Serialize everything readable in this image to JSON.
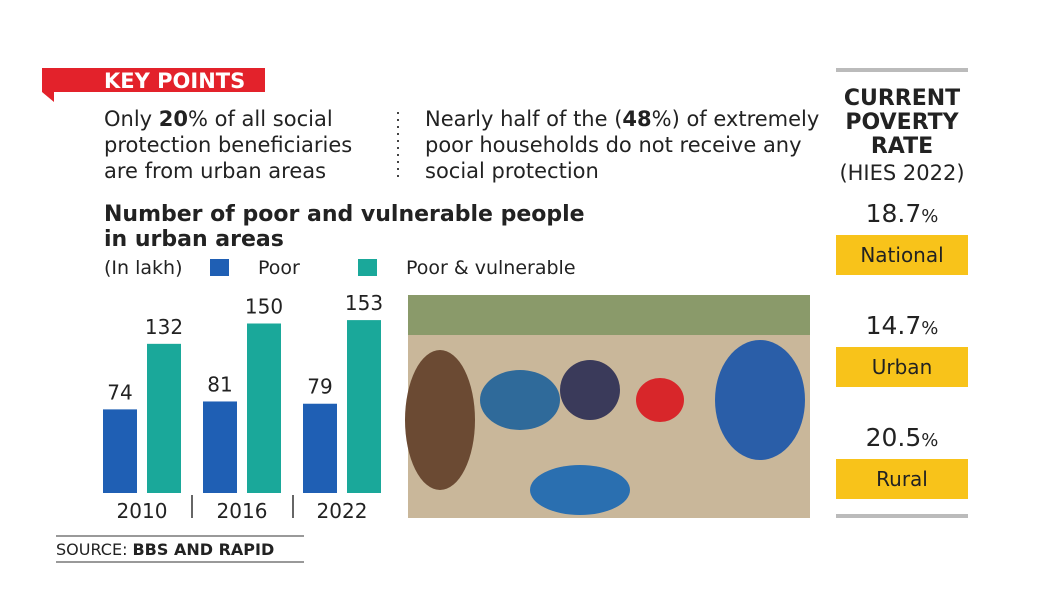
{
  "header": "KEY POINTS",
  "key_points": [
    {
      "parts": [
        "Only ",
        "20",
        "% of all social protection beneficiaries are from urban areas"
      ]
    },
    {
      "parts": [
        "Nearly half of the (",
        "48",
        "%) of extremely poor households do not receive any social protection"
      ]
    }
  ],
  "chart_data": {
    "type": "bar",
    "title": "Number of poor and vulnerable people in urban areas",
    "unit_label": "(In lakh)",
    "categories": [
      "2010",
      "2016",
      "2022"
    ],
    "series": [
      {
        "name": "Poor",
        "color": "#1f5fb4",
        "values": [
          74,
          81,
          79
        ]
      },
      {
        "name": "Poor & vulnerable",
        "color": "#1aa89a",
        "values": [
          132,
          150,
          153
        ]
      }
    ]
  },
  "poverty_rate": {
    "title": [
      "CURRENT",
      "POVERTY",
      "RATE"
    ],
    "subtitle": "(HIES 2022)",
    "unit": "%",
    "values": [
      18.7,
      14.7,
      20.5
    ],
    "labels": [
      "National",
      "Urban",
      "Rural"
    ]
  },
  "source": {
    "label": "SOURCE:",
    "text": "BBS AND RAPID"
  }
}
